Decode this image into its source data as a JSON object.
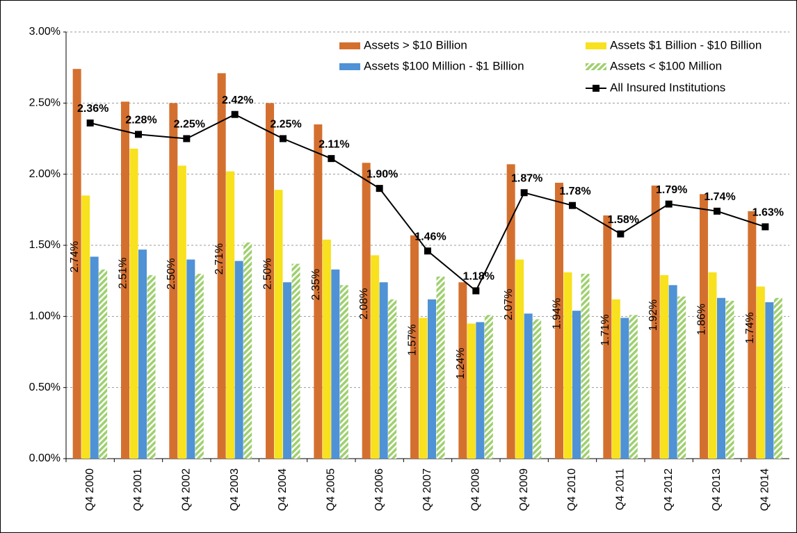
{
  "chart_data": {
    "type": "bar",
    "categories": [
      "Q4 2000",
      "Q4 2001",
      "Q4 2002",
      "Q4 2003",
      "Q4 2004",
      "Q4 2005",
      "Q4 2006",
      "Q4 2007",
      "Q4 2008",
      "Q4 2009",
      "Q4 2010",
      "Q4 2011",
      "Q4 2012",
      "Q4 2013",
      "Q4 2014"
    ],
    "series": [
      {
        "name": "Assets > $10 Billion",
        "color": "#d4702f",
        "values": [
          2.74,
          2.51,
          2.5,
          2.71,
          2.5,
          2.35,
          2.08,
          1.57,
          1.24,
          2.07,
          1.94,
          1.71,
          1.92,
          1.86,
          1.74
        ],
        "value_labels": [
          "2.74%",
          "2.51%",
          "2.50%",
          "2.71%",
          "2.50%",
          "2.35%",
          "2.08%",
          "1.57%",
          "1.24%",
          "2.07%",
          "1.94%",
          "1.71%",
          "1.92%",
          "1.86%",
          "1.74%"
        ]
      },
      {
        "name": "Assets $1 Billion - $10 Billion",
        "color": "#f8e11e",
        "values": [
          1.85,
          2.18,
          2.06,
          2.02,
          1.89,
          1.54,
          1.43,
          0.99,
          0.95,
          1.4,
          1.31,
          1.12,
          1.29,
          1.31,
          1.21
        ]
      },
      {
        "name": "Assets $100 Million - $1 Billion",
        "color": "#4f92d6",
        "values": [
          1.42,
          1.47,
          1.4,
          1.39,
          1.24,
          1.33,
          1.24,
          1.12,
          0.96,
          1.02,
          1.04,
          0.99,
          1.22,
          1.13,
          1.1
        ]
      },
      {
        "name": "Assets < $100 Million",
        "color": "#9fd06f",
        "hatch": true,
        "values": [
          1.33,
          1.29,
          1.3,
          1.52,
          1.37,
          1.22,
          1.12,
          1.28,
          1.01,
          0.98,
          1.3,
          1.01,
          1.14,
          1.11,
          1.13
        ]
      },
      {
        "name": "All Insured Institutions",
        "type": "line",
        "color": "#000000",
        "values": [
          2.36,
          2.28,
          2.25,
          2.42,
          2.25,
          2.11,
          1.9,
          1.46,
          1.18,
          1.87,
          1.78,
          1.58,
          1.79,
          1.74,
          1.63
        ],
        "value_labels": [
          "2.36%",
          "2.28%",
          "2.25%",
          "2.42%",
          "2.25%",
          "2.11%",
          "1.90%",
          "1.46%",
          "1.18%",
          "1.87%",
          "1.78%",
          "1.58%",
          "1.79%",
          "1.74%",
          "1.63%"
        ]
      }
    ],
    "ylim": [
      0,
      3
    ],
    "yticks": [
      {
        "value": 0,
        "label": "0.00%"
      },
      {
        "value": 0.5,
        "label": "0.50%"
      },
      {
        "value": 1,
        "label": "1.00%"
      },
      {
        "value": 1.5,
        "label": "1.50%"
      },
      {
        "value": 2,
        "label": "2.00%"
      },
      {
        "value": 2.5,
        "label": "2.50%"
      },
      {
        "value": 3,
        "label": "3.00%"
      }
    ],
    "grid": true,
    "legend": "top-right"
  }
}
